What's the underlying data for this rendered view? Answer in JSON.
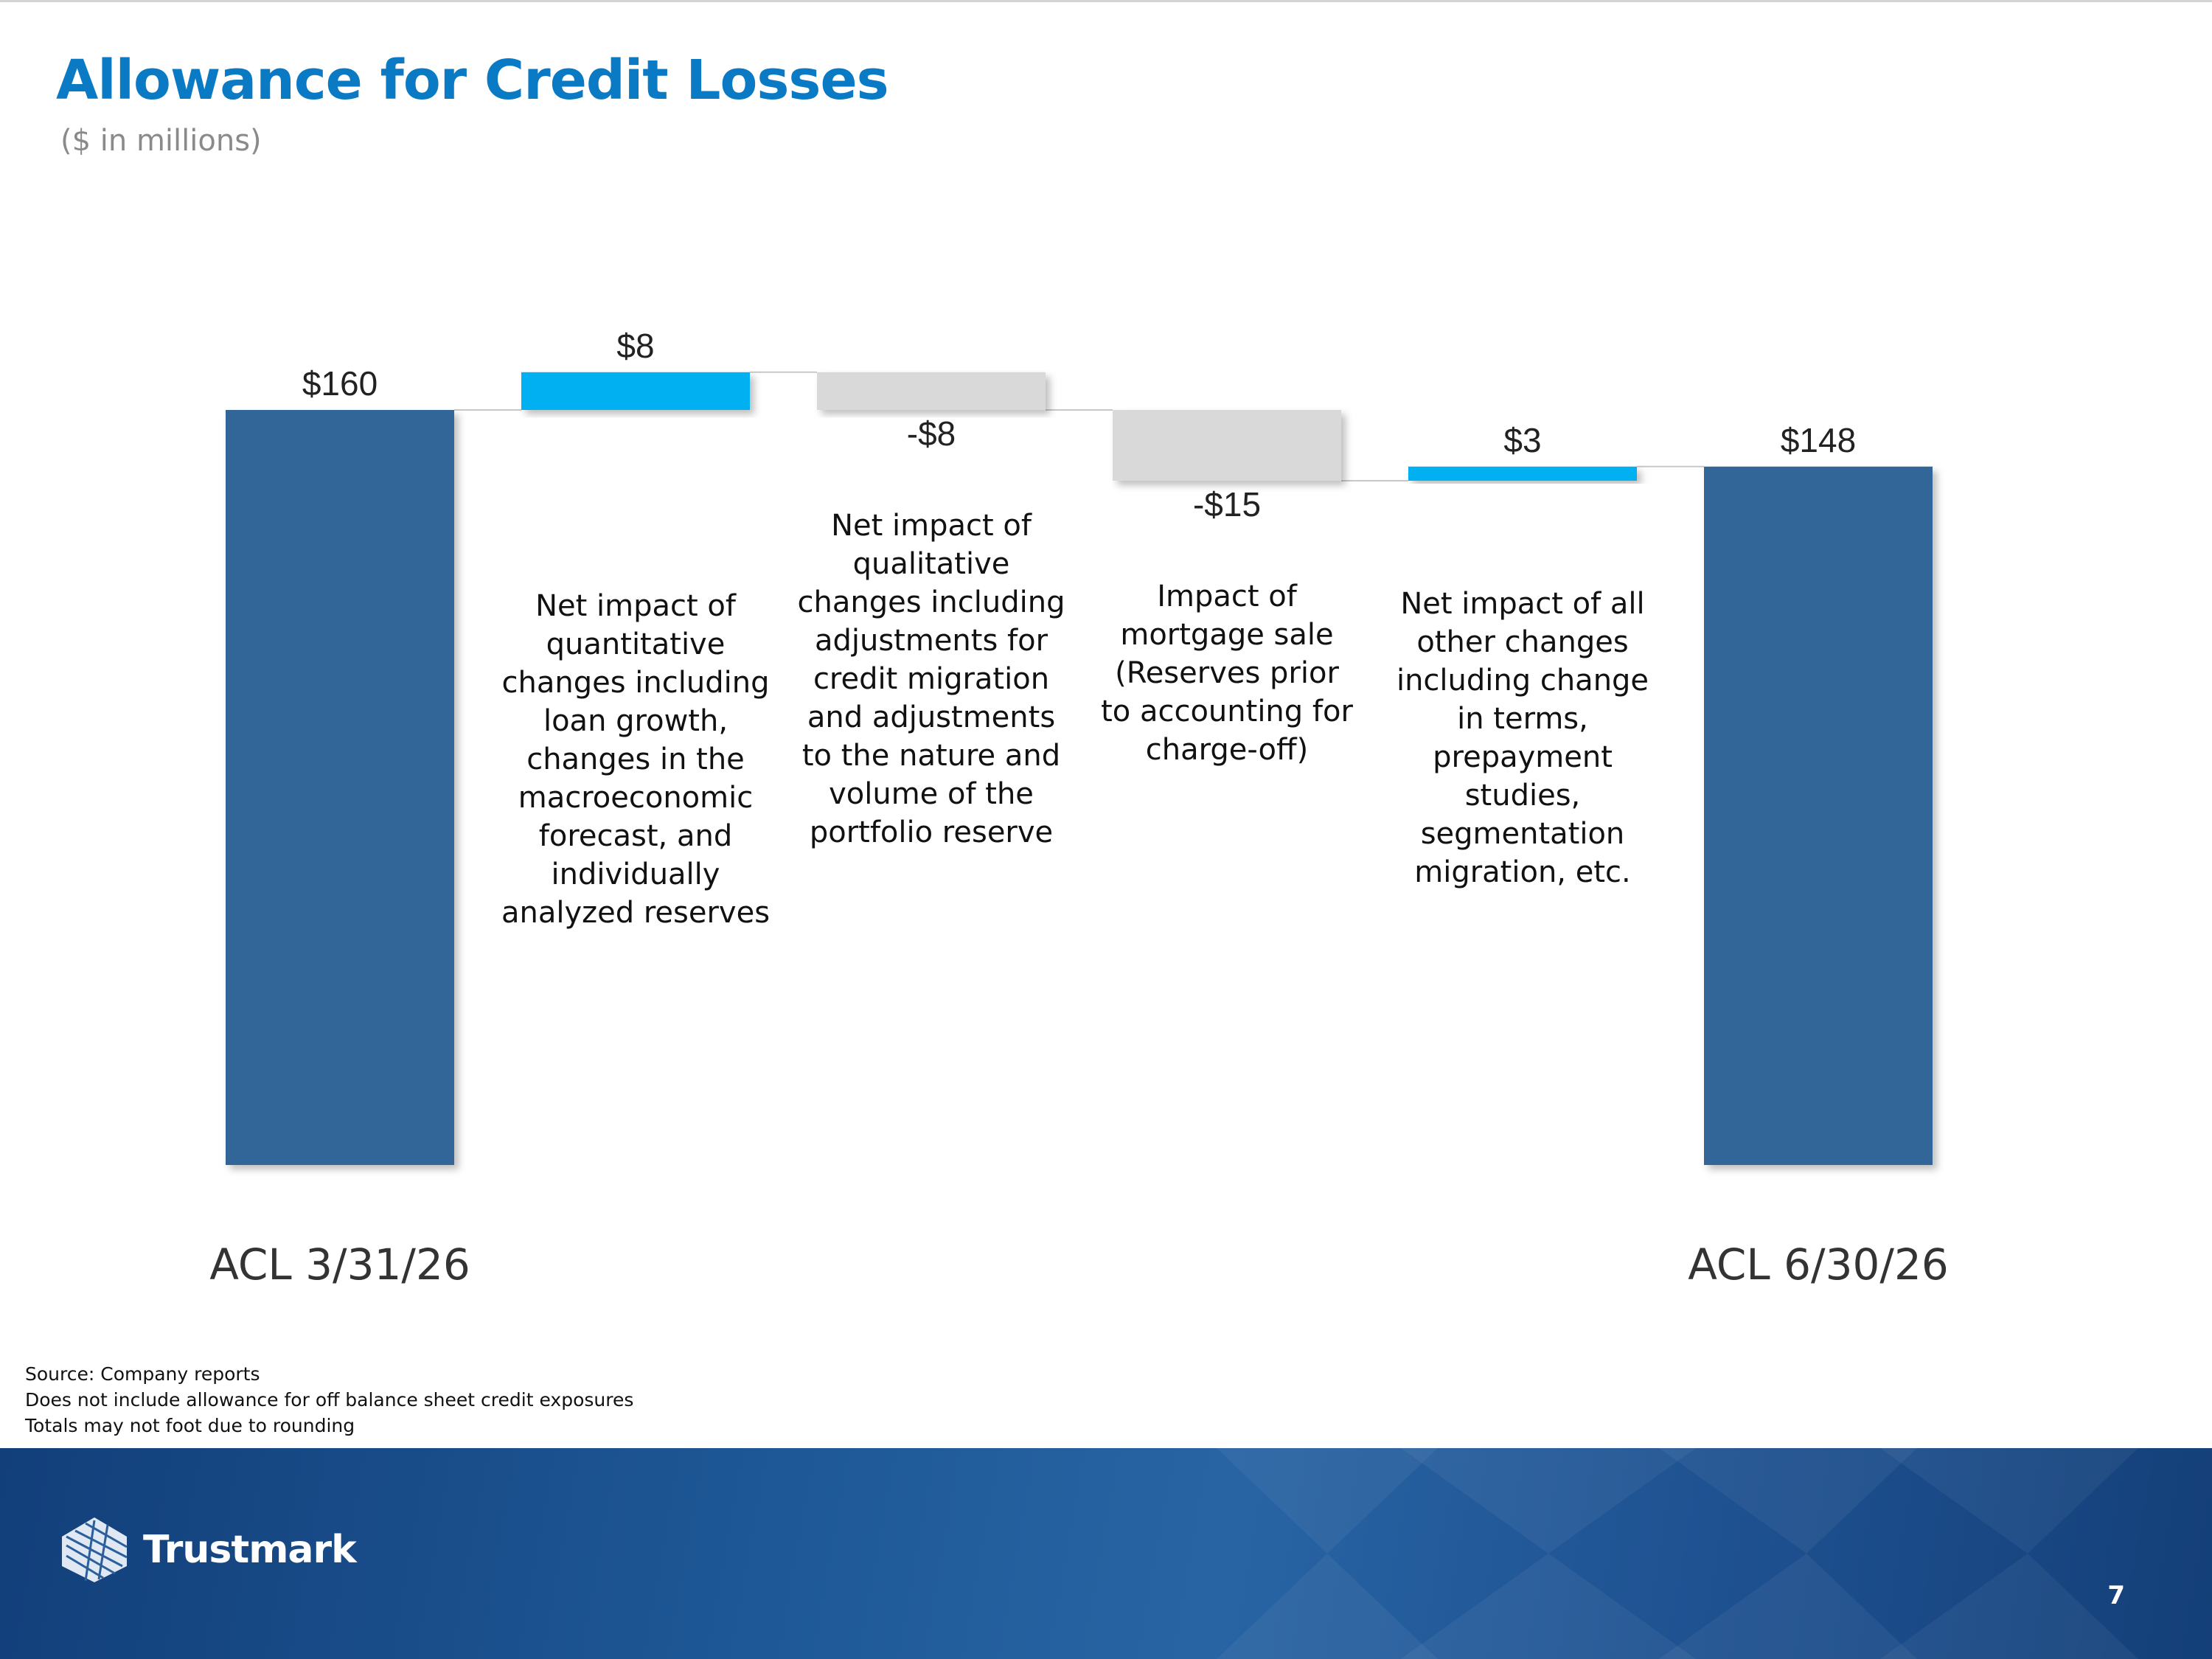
{
  "title": "Allowance for Credit Losses",
  "subtitle": "($ in millions)",
  "chart_data": {
    "type": "bar",
    "subtype": "waterfall",
    "categories": [
      "ACL 3/31/26",
      "",
      "",
      "",
      "",
      "ACL 6/30/26"
    ],
    "values": [
      160,
      8,
      -8,
      -15,
      3,
      148
    ],
    "value_labels": [
      "$160",
      "$8",
      "-$8",
      "-$15",
      "$3",
      "$148"
    ],
    "kinds": [
      "total",
      "increase",
      "decrease",
      "decrease",
      "increase",
      "total"
    ],
    "annotations": [
      "",
      "Net impact of quantitative changes including loan growth, changes in the macroeconomic forecast, and individually analyzed reserves",
      "Net impact of qualitative changes including adjustments for credit migration and adjustments to the nature and volume of the portfolio reserve",
      "Impact of mortgage sale (Reserves prior to accounting for charge-off)",
      "Net impact of all other changes including change in terms, prepayment studies, segmentation migration, etc.",
      ""
    ],
    "colors": {
      "total": "#336699",
      "increase": "#00b0f0",
      "decrease": "#d9d9d9"
    },
    "ylim": [
      0,
      168
    ],
    "grid": false,
    "legend": "none"
  },
  "footnotes": [
    "Source: Company reports",
    "Does not include allowance for off balance sheet credit exposures",
    "Totals may not foot due to rounding"
  ],
  "footer": {
    "brand": "Trustmark",
    "logo_icon": "trustmark-globe-logo",
    "page_number": "7"
  }
}
